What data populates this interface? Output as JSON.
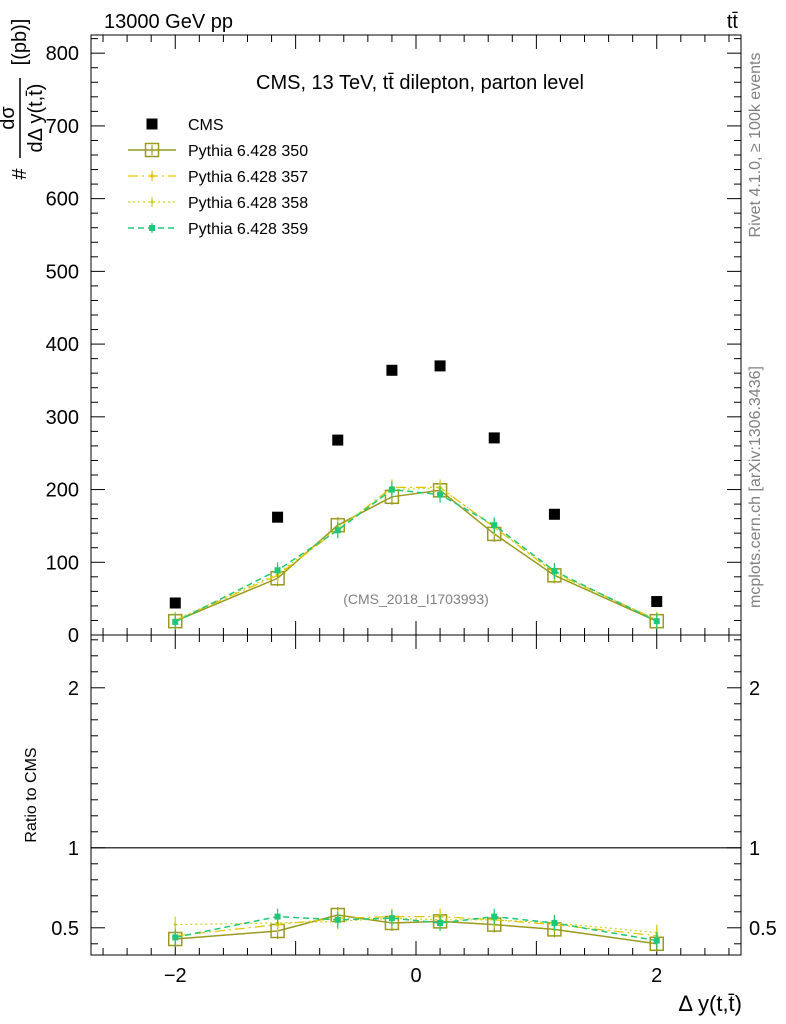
{
  "header": {
    "energy_label": "13000 GeV pp",
    "process_label": "tt̄"
  },
  "side_labels": {
    "rivet": "Rivet 4.1.0, ≥ 100k events",
    "mcplots": "mcplots.cern.ch [arXiv:1306.3436]"
  },
  "colors": {
    "cms": "#000000",
    "p350": "#9a9a1e",
    "p357": "#e6c300",
    "p358": "#c8d21e",
    "p359": "#1ec878"
  },
  "chart_data": [
    {
      "type": "scatter",
      "title": "CMS, 13 TeV, tt̄ dilepton, parton level",
      "watermark": "(CMS_2018_I1703993)",
      "ylabel_num": "dσ",
      "ylabel_den": "dΔ y(t,t̄)",
      "ylabel_prefix": "#",
      "ylabel_unit": "[(pb)]",
      "xlabel": "Δ y(t,t̄)",
      "xlim": [
        -2.7,
        2.7
      ],
      "ylim": [
        0,
        825
      ],
      "yticks": [
        0,
        100,
        200,
        300,
        400,
        500,
        600,
        700,
        800
      ],
      "ytick_labels": [
        "0",
        "100",
        "200",
        "300",
        "400",
        "500",
        "600",
        "700",
        "800"
      ],
      "x": [
        -2.0,
        -1.15,
        -0.65,
        -0.2,
        0.2,
        0.65,
        1.15,
        2.0
      ],
      "series": [
        {
          "name": "CMS",
          "style": "cms",
          "values": [
            44,
            162,
            268,
            364,
            370,
            271,
            166,
            46
          ]
        },
        {
          "name": "Pythia 6.428 350",
          "style": "p350",
          "values": [
            19,
            78,
            151,
            190,
            199,
            139,
            82,
            19
          ]
        },
        {
          "name": "Pythia 6.428 357",
          "style": "p357",
          "values": [
            20,
            82,
            145,
            203,
            203,
            148,
            85,
            21
          ]
        },
        {
          "name": "Pythia 6.428 358",
          "style": "p358",
          "values": [
            21,
            84,
            147,
            200,
            202,
            149,
            86,
            21
          ]
        },
        {
          "name": "Pythia 6.428 359",
          "style": "p359",
          "values": [
            18,
            89,
            144,
            200,
            193,
            151,
            88,
            19
          ]
        }
      ]
    },
    {
      "type": "line",
      "ylabel": "Ratio to CMS",
      "xlim": [
        -2.7,
        2.7
      ],
      "ylim": [
        0.33,
        2.33
      ],
      "xticks": [
        -2,
        0,
        2
      ],
      "xtick_labels": [
        "−2",
        "0",
        "2"
      ],
      "yticks": [
        0.5,
        1,
        2
      ],
      "ytick_labels": [
        "0.5",
        "1",
        "2"
      ],
      "x": [
        -2.0,
        -1.15,
        -0.65,
        -0.2,
        0.2,
        0.65,
        1.15,
        2.0
      ],
      "series": [
        {
          "name": "Pythia 6.428 350",
          "style": "p350",
          "values": [
            0.43,
            0.48,
            0.58,
            0.53,
            0.54,
            0.52,
            0.49,
            0.4
          ]
        },
        {
          "name": "Pythia 6.428 357",
          "style": "p357",
          "values": [
            0.45,
            0.52,
            0.56,
            0.57,
            0.57,
            0.55,
            0.52,
            0.45
          ]
        },
        {
          "name": "Pythia 6.428 358",
          "style": "p358",
          "values": [
            0.52,
            0.53,
            0.54,
            0.56,
            0.55,
            0.55,
            0.53,
            0.47
          ]
        },
        {
          "name": "Pythia 6.428 359",
          "style": "p359",
          "values": [
            0.44,
            0.57,
            0.55,
            0.56,
            0.53,
            0.57,
            0.53,
            0.42
          ]
        }
      ]
    }
  ]
}
